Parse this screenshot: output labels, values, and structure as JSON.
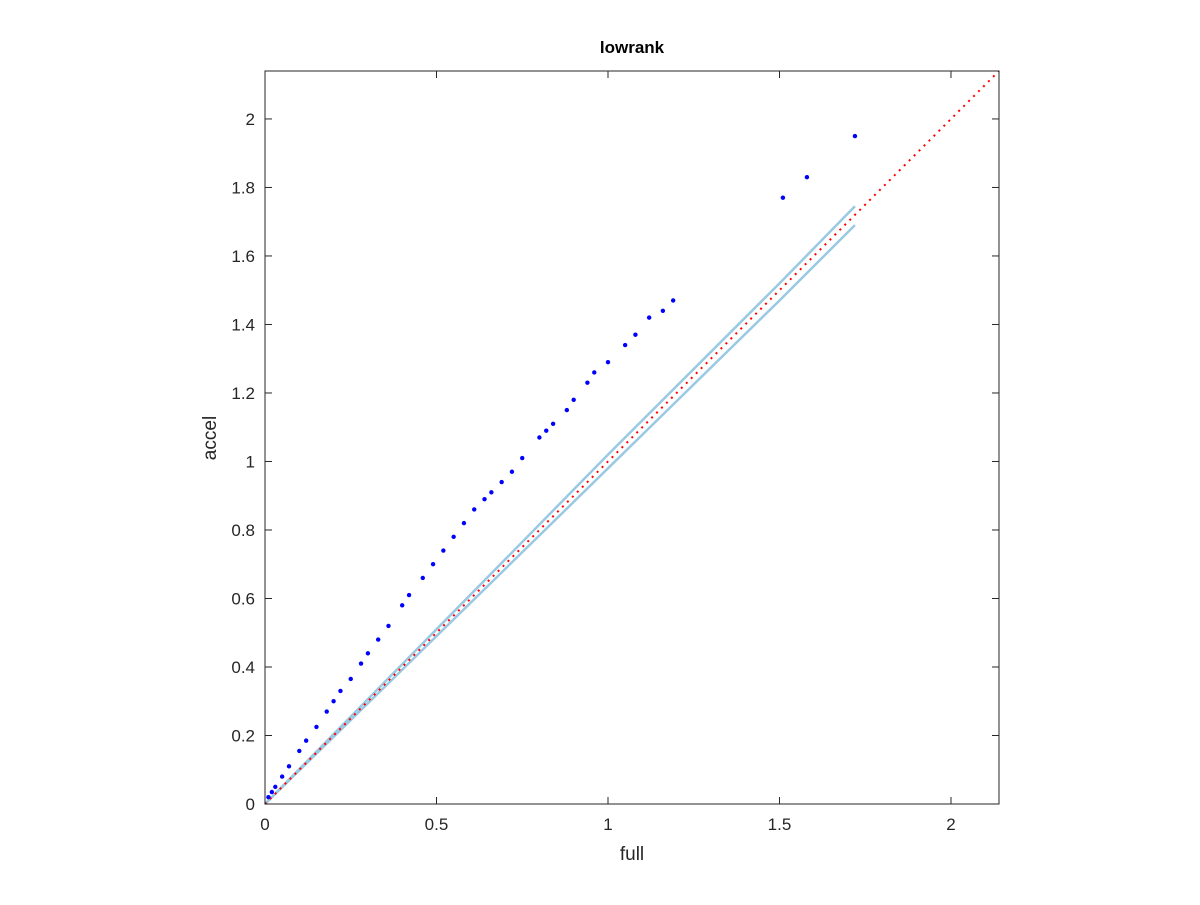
{
  "chart_data": {
    "type": "scatter",
    "title": "lowrank",
    "x_label": "full",
    "y_label": "accel",
    "xlim": [
      0,
      2.14
    ],
    "ylim": [
      0,
      2.14
    ],
    "xticks": [
      0,
      0.5,
      1,
      1.5,
      2
    ],
    "yticks": [
      0,
      0.2,
      0.4,
      0.6,
      0.8,
      1,
      1.2,
      1.4,
      1.6,
      1.8,
      2
    ],
    "grid": false,
    "box": true,
    "series": [
      {
        "type": "scatter",
        "color": "#0000ff",
        "x": [
          0.01,
          0.02,
          0.03,
          0.05,
          0.07,
          0.1,
          0.12,
          0.15,
          0.18,
          0.2,
          0.22,
          0.25,
          0.28,
          0.3,
          0.33,
          0.36,
          0.4,
          0.42,
          0.46,
          0.49,
          0.52,
          0.55,
          0.58,
          0.61,
          0.64,
          0.66,
          0.69,
          0.72,
          0.75,
          0.8,
          0.82,
          0.84,
          0.88,
          0.9,
          0.94,
          0.96,
          1.0,
          1.05,
          1.08,
          1.12,
          1.16,
          1.19,
          1.51,
          1.58,
          1.72
        ],
        "values": [
          0.02,
          0.035,
          0.05,
          0.08,
          0.11,
          0.155,
          0.185,
          0.225,
          0.27,
          0.3,
          0.33,
          0.365,
          0.41,
          0.44,
          0.48,
          0.52,
          0.58,
          0.61,
          0.66,
          0.7,
          0.74,
          0.78,
          0.82,
          0.86,
          0.89,
          0.91,
          0.94,
          0.97,
          1.01,
          1.07,
          1.09,
          1.11,
          1.15,
          1.18,
          1.23,
          1.26,
          1.29,
          1.34,
          1.37,
          1.42,
          1.44,
          1.47,
          1.77,
          1.83,
          1.95
        ]
      },
      {
        "type": "line",
        "color": "#9ac9e3",
        "line_style": "solid",
        "x": [
          0,
          0.5,
          1,
          1.5,
          1.72
        ],
        "values": [
          0,
          0.51,
          1.02,
          1.52,
          1.745
        ]
      },
      {
        "type": "line",
        "color": "#9ac9e3",
        "line_style": "solid",
        "x": [
          0,
          0.5,
          1,
          1.5,
          1.72
        ],
        "values": [
          0,
          0.49,
          0.98,
          1.47,
          1.69
        ]
      },
      {
        "type": "line",
        "color": "#ff0000",
        "line_style": "dotted",
        "x": [
          0,
          2.14
        ],
        "values": [
          0,
          2.14
        ]
      }
    ]
  }
}
